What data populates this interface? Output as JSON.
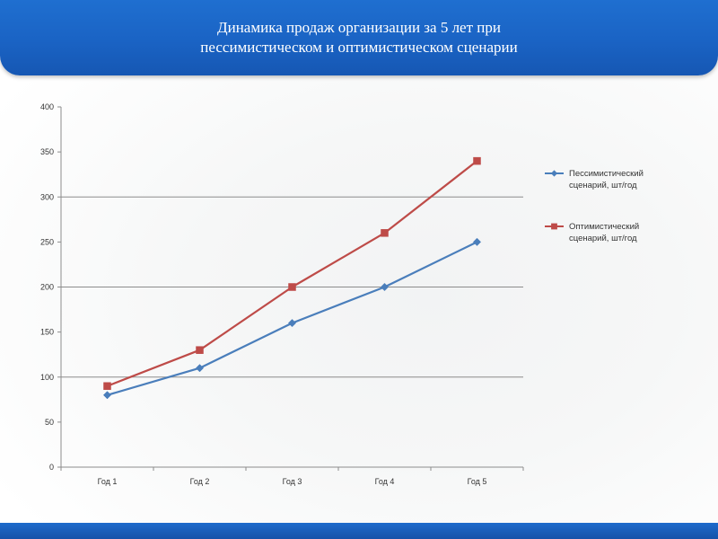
{
  "title": {
    "line1": "Динамика продаж организации за 5 лет при",
    "line2": "пессимистическом и оптимистическом сценарии"
  },
  "colors": {
    "header": "#1a63c4",
    "series_pessimistic": "#4a7ebb",
    "series_optimistic": "#be4b48"
  },
  "chart_data": {
    "type": "line",
    "categories": [
      "Год 1",
      "Год 2",
      "Год 3",
      "Год 4",
      "Год 5"
    ],
    "series": [
      {
        "name": "Пессимистический сценарий, шт/год",
        "legend_lines": [
          "Пессимистический",
          "сценарий, шт/год"
        ],
        "values": [
          80,
          110,
          160,
          200,
          250
        ],
        "marker": "diamond"
      },
      {
        "name": "Оптимистический сценарий, шт/год",
        "legend_lines": [
          "Оптимистический",
          "сценарий, шт/год"
        ],
        "values": [
          90,
          130,
          200,
          260,
          340
        ],
        "marker": "square"
      }
    ],
    "ylim": [
      0,
      400
    ],
    "yticks": [
      0,
      50,
      100,
      150,
      200,
      250,
      300,
      350,
      400
    ],
    "gridlines": [
      100,
      200,
      300
    ],
    "legend_position": "right"
  }
}
